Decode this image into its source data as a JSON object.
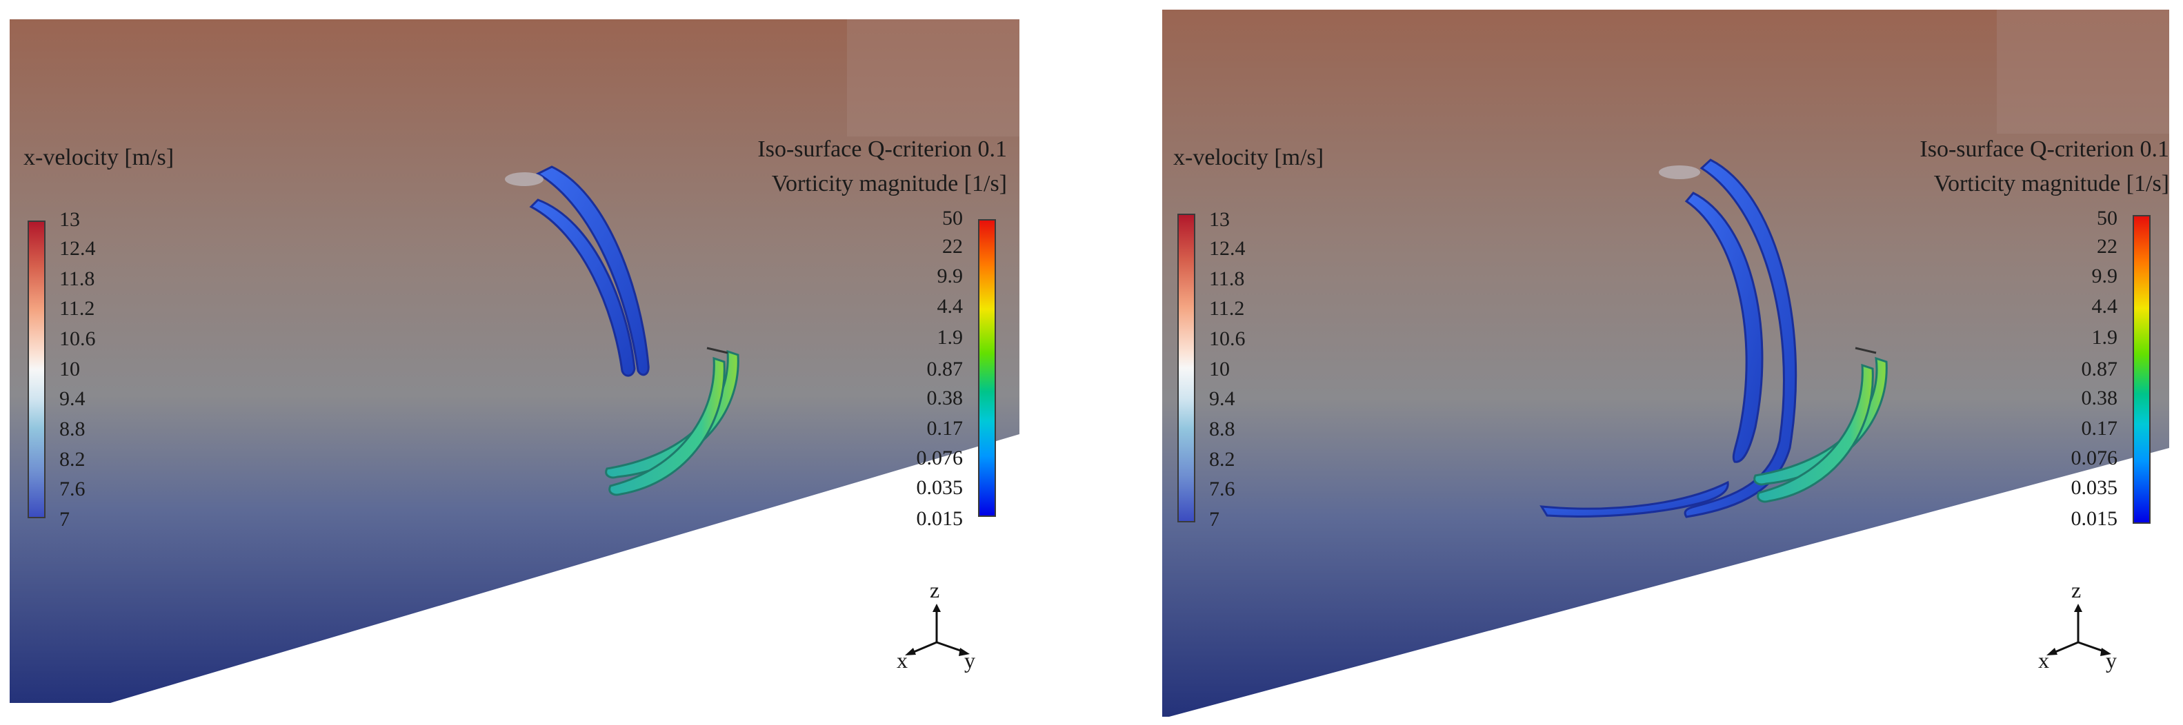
{
  "panels": [
    {
      "velocity_legend": {
        "title": "x-velocity [m/s]",
        "ticks": [
          "13",
          "12.4",
          "11.8",
          "11.2",
          "10.6",
          "10",
          "9.4",
          "8.8",
          "8.2",
          "7.6",
          "7"
        ]
      },
      "vorticity_legend": {
        "title_line1": "Iso-surface Q-criterion 0.1",
        "title_line2": "Vorticity magnitude [1/s]",
        "ticks": [
          "50",
          "22",
          "9.9",
          "4.4",
          "1.9",
          "0.87",
          "0.38",
          "0.17",
          "0.076",
          "0.035",
          "0.015"
        ]
      },
      "axes": {
        "z": "z",
        "x": "x",
        "y": "y"
      }
    },
    {
      "velocity_legend": {
        "title": "x-velocity [m/s]",
        "ticks": [
          "13",
          "12.4",
          "11.8",
          "11.2",
          "10.6",
          "10",
          "9.4",
          "8.8",
          "8.2",
          "7.6",
          "7"
        ]
      },
      "vorticity_legend": {
        "title_line1": "Iso-surface Q-criterion 0.1",
        "title_line2": "Vorticity magnitude [1/s]",
        "ticks": [
          "50",
          "22",
          "9.9",
          "4.4",
          "1.9",
          "0.87",
          "0.38",
          "0.17",
          "0.076",
          "0.035",
          "0.015"
        ]
      },
      "axes": {
        "z": "z",
        "x": "x",
        "y": "y"
      }
    }
  ],
  "colors": {
    "flow_top": "#9a6a55",
    "flow_mid": "#8a8a8a",
    "flow_bottom": "#26367a",
    "vortex_blue": "#2a55d8",
    "vortex_teal": "#2fc0a0"
  }
}
